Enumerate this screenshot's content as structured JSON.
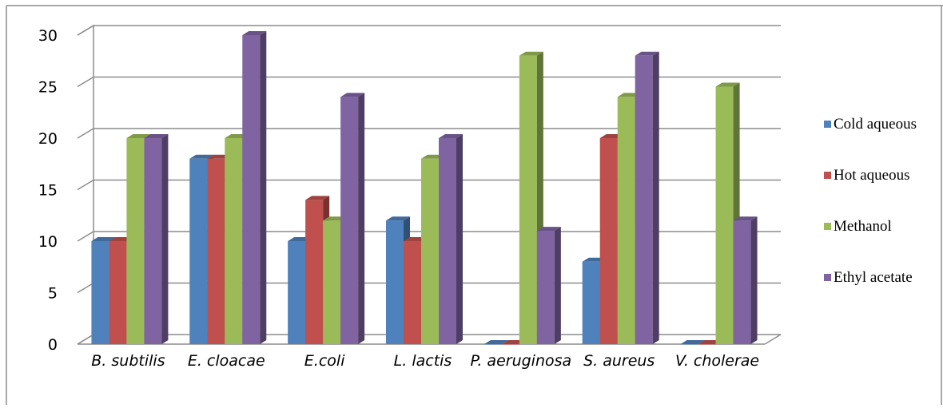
{
  "chart_data": {
    "type": "bar",
    "categories": [
      "B. subtilis",
      "E. cloacae",
      "E.coli",
      "L. lactis",
      "P. aeruginosa",
      "S. aureus",
      "V. cholerae"
    ],
    "series": [
      {
        "name": "Cold aqueous",
        "color": "#4F81BD",
        "values": [
          10,
          18,
          10,
          12,
          0,
          8,
          0
        ]
      },
      {
        "name": "Hot aqueous",
        "color": "#C0504D",
        "values": [
          10,
          18,
          14,
          10,
          0,
          20,
          0
        ]
      },
      {
        "name": "Methanol",
        "color": "#9BBB59",
        "values": [
          20,
          20,
          12,
          18,
          28,
          24,
          25
        ]
      },
      {
        "name": "Ethyl acetate",
        "color": "#8064A2",
        "values": [
          20,
          30,
          24,
          20,
          11,
          28,
          12
        ]
      }
    ],
    "yticks": [
      "0",
      "5",
      "10",
      "15",
      "20",
      "25",
      "30"
    ],
    "ylim": [
      0,
      30
    ],
    "grid": true,
    "legend_position": "right",
    "title": "",
    "xlabel": "",
    "ylabel": ""
  }
}
